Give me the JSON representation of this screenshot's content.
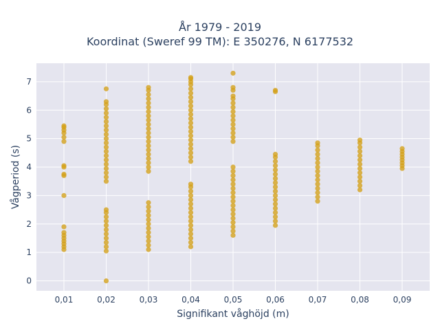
{
  "colors": {
    "plot_background": "#e5e5ef",
    "grid": "#ffffff",
    "marker": "#d4a017",
    "text": "#2a3f5f"
  },
  "chart_data": {
    "type": "scatter",
    "title": "År 1979 - 2019",
    "subtitle": "Koordinat (Sweref 99 TM): E 350276, N 6177532",
    "xlabel": "Signifikant våghöjd (m)",
    "ylabel": "Vågperiod (s)",
    "xlim": [
      0.0035,
      0.0965
    ],
    "ylim": [
      -0.35,
      7.65
    ],
    "grid": true,
    "x_ticks": [
      {
        "value": 0.01,
        "label": "0,01"
      },
      {
        "value": 0.02,
        "label": "0,02"
      },
      {
        "value": 0.03,
        "label": "0,03"
      },
      {
        "value": 0.04,
        "label": "0,04"
      },
      {
        "value": 0.05,
        "label": "0,05"
      },
      {
        "value": 0.06,
        "label": "0,06"
      },
      {
        "value": 0.07,
        "label": "0,07"
      },
      {
        "value": 0.08,
        "label": "0,08"
      },
      {
        "value": 0.09,
        "label": "0,09"
      }
    ],
    "y_ticks": [
      {
        "value": 0,
        "label": "0"
      },
      {
        "value": 1,
        "label": "1"
      },
      {
        "value": 2,
        "label": "2"
      },
      {
        "value": 3,
        "label": "3"
      },
      {
        "value": 4,
        "label": "4"
      },
      {
        "value": 5,
        "label": "5"
      },
      {
        "value": 6,
        "label": "6"
      },
      {
        "value": 7,
        "label": "7"
      }
    ],
    "series": [
      {
        "points": [
          [
            0.01,
            1.1
          ],
          [
            0.01,
            1.2
          ],
          [
            0.01,
            1.3
          ],
          [
            0.01,
            1.4
          ],
          [
            0.01,
            1.5
          ],
          [
            0.01,
            1.6
          ],
          [
            0.01,
            1.7
          ],
          [
            0.01,
            1.9
          ],
          [
            0.01,
            3.0
          ],
          [
            0.01,
            3.7
          ],
          [
            0.01,
            3.75
          ],
          [
            0.01,
            4.0
          ],
          [
            0.01,
            4.05
          ],
          [
            0.01,
            4.9
          ],
          [
            0.01,
            5.05
          ],
          [
            0.01,
            5.2
          ],
          [
            0.01,
            5.3
          ],
          [
            0.01,
            5.4
          ],
          [
            0.01,
            5.45
          ],
          [
            0.02,
            0.0
          ],
          [
            0.02,
            1.05
          ],
          [
            0.02,
            1.2
          ],
          [
            0.02,
            1.35
          ],
          [
            0.02,
            1.5
          ],
          [
            0.02,
            1.65
          ],
          [
            0.02,
            1.8
          ],
          [
            0.02,
            1.95
          ],
          [
            0.02,
            2.1
          ],
          [
            0.02,
            2.25
          ],
          [
            0.02,
            2.4
          ],
          [
            0.02,
            2.5
          ],
          [
            0.02,
            3.5
          ],
          [
            0.02,
            3.65
          ],
          [
            0.02,
            3.8
          ],
          [
            0.02,
            3.95
          ],
          [
            0.02,
            4.1
          ],
          [
            0.02,
            4.25
          ],
          [
            0.02,
            4.4
          ],
          [
            0.02,
            4.55
          ],
          [
            0.02,
            4.7
          ],
          [
            0.02,
            4.85
          ],
          [
            0.02,
            5.0
          ],
          [
            0.02,
            5.15
          ],
          [
            0.02,
            5.3
          ],
          [
            0.02,
            5.45
          ],
          [
            0.02,
            5.6
          ],
          [
            0.02,
            5.75
          ],
          [
            0.02,
            5.9
          ],
          [
            0.02,
            6.05
          ],
          [
            0.02,
            6.2
          ],
          [
            0.02,
            6.3
          ],
          [
            0.02,
            6.75
          ],
          [
            0.03,
            1.1
          ],
          [
            0.03,
            1.25
          ],
          [
            0.03,
            1.4
          ],
          [
            0.03,
            1.55
          ],
          [
            0.03,
            1.7
          ],
          [
            0.03,
            1.85
          ],
          [
            0.03,
            2.0
          ],
          [
            0.03,
            2.15
          ],
          [
            0.03,
            2.3
          ],
          [
            0.03,
            2.45
          ],
          [
            0.03,
            2.6
          ],
          [
            0.03,
            2.75
          ],
          [
            0.03,
            3.85
          ],
          [
            0.03,
            4.0
          ],
          [
            0.03,
            4.15
          ],
          [
            0.03,
            4.3
          ],
          [
            0.03,
            4.45
          ],
          [
            0.03,
            4.6
          ],
          [
            0.03,
            4.75
          ],
          [
            0.03,
            4.9
          ],
          [
            0.03,
            5.05
          ],
          [
            0.03,
            5.2
          ],
          [
            0.03,
            5.35
          ],
          [
            0.03,
            5.5
          ],
          [
            0.03,
            5.65
          ],
          [
            0.03,
            5.8
          ],
          [
            0.03,
            5.95
          ],
          [
            0.03,
            6.1
          ],
          [
            0.03,
            6.25
          ],
          [
            0.03,
            6.4
          ],
          [
            0.03,
            6.55
          ],
          [
            0.03,
            6.7
          ],
          [
            0.03,
            6.8
          ],
          [
            0.04,
            1.2
          ],
          [
            0.04,
            1.35
          ],
          [
            0.04,
            1.5
          ],
          [
            0.04,
            1.65
          ],
          [
            0.04,
            1.8
          ],
          [
            0.04,
            1.95
          ],
          [
            0.04,
            2.1
          ],
          [
            0.04,
            2.25
          ],
          [
            0.04,
            2.4
          ],
          [
            0.04,
            2.55
          ],
          [
            0.04,
            2.7
          ],
          [
            0.04,
            2.85
          ],
          [
            0.04,
            3.0
          ],
          [
            0.04,
            3.15
          ],
          [
            0.04,
            3.3
          ],
          [
            0.04,
            3.4
          ],
          [
            0.04,
            4.2
          ],
          [
            0.04,
            4.35
          ],
          [
            0.04,
            4.5
          ],
          [
            0.04,
            4.65
          ],
          [
            0.04,
            4.8
          ],
          [
            0.04,
            4.95
          ],
          [
            0.04,
            5.1
          ],
          [
            0.04,
            5.25
          ],
          [
            0.04,
            5.4
          ],
          [
            0.04,
            5.55
          ],
          [
            0.04,
            5.7
          ],
          [
            0.04,
            5.85
          ],
          [
            0.04,
            6.0
          ],
          [
            0.04,
            6.15
          ],
          [
            0.04,
            6.3
          ],
          [
            0.04,
            6.45
          ],
          [
            0.04,
            6.6
          ],
          [
            0.04,
            6.75
          ],
          [
            0.04,
            6.9
          ],
          [
            0.04,
            7.0
          ],
          [
            0.04,
            7.1
          ],
          [
            0.04,
            7.15
          ],
          [
            0.05,
            1.6
          ],
          [
            0.05,
            1.75
          ],
          [
            0.05,
            1.9
          ],
          [
            0.05,
            2.05
          ],
          [
            0.05,
            2.2
          ],
          [
            0.05,
            2.35
          ],
          [
            0.05,
            2.5
          ],
          [
            0.05,
            2.65
          ],
          [
            0.05,
            2.8
          ],
          [
            0.05,
            2.95
          ],
          [
            0.05,
            3.1
          ],
          [
            0.05,
            3.25
          ],
          [
            0.05,
            3.4
          ],
          [
            0.05,
            3.55
          ],
          [
            0.05,
            3.7
          ],
          [
            0.05,
            3.85
          ],
          [
            0.05,
            4.0
          ],
          [
            0.05,
            4.9
          ],
          [
            0.05,
            5.05
          ],
          [
            0.05,
            5.2
          ],
          [
            0.05,
            5.35
          ],
          [
            0.05,
            5.5
          ],
          [
            0.05,
            5.65
          ],
          [
            0.05,
            5.8
          ],
          [
            0.05,
            5.95
          ],
          [
            0.05,
            6.1
          ],
          [
            0.05,
            6.25
          ],
          [
            0.05,
            6.4
          ],
          [
            0.05,
            6.5
          ],
          [
            0.05,
            6.7
          ],
          [
            0.05,
            6.8
          ],
          [
            0.05,
            7.3
          ],
          [
            0.06,
            1.95
          ],
          [
            0.06,
            2.1
          ],
          [
            0.06,
            2.25
          ],
          [
            0.06,
            2.4
          ],
          [
            0.06,
            2.55
          ],
          [
            0.06,
            2.7
          ],
          [
            0.06,
            2.85
          ],
          [
            0.06,
            3.0
          ],
          [
            0.06,
            3.15
          ],
          [
            0.06,
            3.3
          ],
          [
            0.06,
            3.45
          ],
          [
            0.06,
            3.6
          ],
          [
            0.06,
            3.75
          ],
          [
            0.06,
            3.9
          ],
          [
            0.06,
            4.05
          ],
          [
            0.06,
            4.2
          ],
          [
            0.06,
            4.35
          ],
          [
            0.06,
            4.45
          ],
          [
            0.06,
            6.65
          ],
          [
            0.06,
            6.7
          ],
          [
            0.07,
            2.8
          ],
          [
            0.07,
            2.95
          ],
          [
            0.07,
            3.1
          ],
          [
            0.07,
            3.25
          ],
          [
            0.07,
            3.4
          ],
          [
            0.07,
            3.55
          ],
          [
            0.07,
            3.7
          ],
          [
            0.07,
            3.85
          ],
          [
            0.07,
            4.0
          ],
          [
            0.07,
            4.15
          ],
          [
            0.07,
            4.3
          ],
          [
            0.07,
            4.45
          ],
          [
            0.07,
            4.6
          ],
          [
            0.07,
            4.75
          ],
          [
            0.07,
            4.85
          ],
          [
            0.08,
            3.2
          ],
          [
            0.08,
            3.35
          ],
          [
            0.08,
            3.5
          ],
          [
            0.08,
            3.65
          ],
          [
            0.08,
            3.8
          ],
          [
            0.08,
            3.95
          ],
          [
            0.08,
            4.1
          ],
          [
            0.08,
            4.25
          ],
          [
            0.08,
            4.4
          ],
          [
            0.08,
            4.55
          ],
          [
            0.08,
            4.7
          ],
          [
            0.08,
            4.85
          ],
          [
            0.08,
            4.95
          ],
          [
            0.09,
            3.95
          ],
          [
            0.09,
            4.05
          ],
          [
            0.09,
            4.15
          ],
          [
            0.09,
            4.25
          ],
          [
            0.09,
            4.35
          ],
          [
            0.09,
            4.45
          ],
          [
            0.09,
            4.55
          ],
          [
            0.09,
            4.65
          ]
        ]
      }
    ]
  }
}
